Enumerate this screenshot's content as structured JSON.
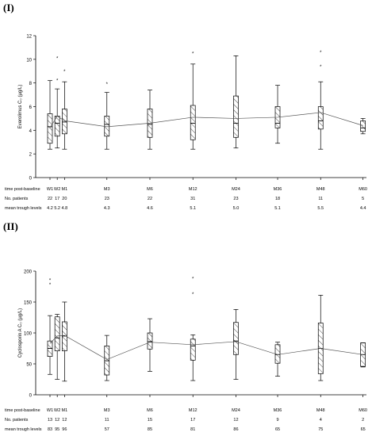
{
  "chart_data": [
    {
      "type": "box",
      "panel_label": "(I)",
      "ylabel": "Everolimus C₀ (µg/L)",
      "ylim": [
        0,
        12
      ],
      "yticks": [
        0,
        2,
        4,
        6,
        8,
        10,
        12
      ],
      "categories": [
        "W1",
        "W2",
        "M1",
        "M3",
        "M6",
        "M12",
        "M24",
        "M36",
        "M48",
        "M60"
      ],
      "boxes": [
        {
          "min": 2.4,
          "q1": 2.9,
          "median": 4.3,
          "q3": 5.4,
          "max": 8.2,
          "outliers": []
        },
        {
          "min": 2.5,
          "q1": 3.5,
          "median": 4.6,
          "q3": 5.2,
          "max": 7.5,
          "outliers": [
            8.2,
            10.1
          ]
        },
        {
          "min": 2.4,
          "q1": 3.7,
          "median": 4.7,
          "q3": 5.8,
          "max": 8.1,
          "outliers": [
            9.0
          ]
        },
        {
          "min": 2.4,
          "q1": 3.5,
          "median": 4.5,
          "q3": 5.2,
          "max": 7.2,
          "outliers": [
            7.9
          ]
        },
        {
          "min": 2.4,
          "q1": 3.4,
          "median": 4.5,
          "q3": 5.8,
          "max": 7.4,
          "outliers": []
        },
        {
          "min": 2.4,
          "q1": 3.2,
          "median": 4.6,
          "q3": 6.1,
          "max": 9.6,
          "outliers": [
            10.5
          ]
        },
        {
          "min": 2.5,
          "q1": 3.4,
          "median": 4.6,
          "q3": 6.9,
          "max": 10.3,
          "outliers": []
        },
        {
          "min": 2.9,
          "q1": 4.2,
          "median": 4.6,
          "q3": 6.0,
          "max": 7.8,
          "outliers": []
        },
        {
          "min": 2.4,
          "q1": 4.1,
          "median": 4.8,
          "q3": 6.0,
          "max": 8.1,
          "outliers": [
            9.4,
            10.6
          ]
        },
        {
          "min": 3.7,
          "q1": 3.9,
          "median": 4.2,
          "q3": 4.8,
          "max": 5.0,
          "outliers": []
        }
      ],
      "mean_line": [
        4.2,
        5.2,
        4.8,
        4.3,
        4.6,
        5.1,
        5.0,
        5.1,
        5.5,
        4.4
      ],
      "table": {
        "time_label": "time post-baseline",
        "rows": [
          {
            "label": "No. patients",
            "values": [
              "22",
              "17",
              "20",
              "23",
              "22",
              "31",
              "23",
              "18",
              "11",
              "5"
            ]
          },
          {
            "label": "mean trough levels",
            "values": [
              "4.2",
              "5.2",
              "4.8",
              "4.3",
              "4.6",
              "5.1",
              "5.0",
              "5.1",
              "5.5",
              "4.4"
            ]
          }
        ]
      }
    },
    {
      "type": "box",
      "panel_label": "(II)",
      "ylabel": "Cyclosporin A C₀ (µg/L)",
      "ylim": [
        0,
        200
      ],
      "yticks": [
        0,
        50,
        100,
        150,
        200
      ],
      "categories": [
        "W1",
        "W2",
        "M1",
        "M3",
        "M6",
        "M12",
        "M24",
        "M36",
        "M48",
        "M60"
      ],
      "boxes": [
        {
          "min": 33,
          "q1": 62,
          "median": 75,
          "q3": 87,
          "max": 128,
          "outliers": [
            178,
            185
          ]
        },
        {
          "min": 25,
          "q1": 71,
          "median": 92,
          "q3": 126,
          "max": 130,
          "outliers": []
        },
        {
          "min": 22,
          "q1": 71,
          "median": 95,
          "q3": 118,
          "max": 150,
          "outliers": []
        },
        {
          "min": 23,
          "q1": 32,
          "median": 55,
          "q3": 79,
          "max": 96,
          "outliers": []
        },
        {
          "min": 38,
          "q1": 74,
          "median": 86,
          "q3": 100,
          "max": 123,
          "outliers": []
        },
        {
          "min": 23,
          "q1": 56,
          "median": 79,
          "q3": 90,
          "max": 97,
          "outliers": [
            163,
            188
          ]
        },
        {
          "min": 25,
          "q1": 65,
          "median": 87,
          "q3": 117,
          "max": 138,
          "outliers": []
        },
        {
          "min": 30,
          "q1": 51,
          "median": 65,
          "q3": 81,
          "max": 85,
          "outliers": []
        },
        {
          "min": 23,
          "q1": 34,
          "median": 75,
          "q3": 116,
          "max": 161,
          "outliers": []
        },
        {
          "min": 45,
          "q1": 46,
          "median": 65,
          "q3": 84,
          "max": 84,
          "outliers": []
        }
      ],
      "mean_line": [
        83,
        95,
        96,
        57,
        85,
        81,
        86,
        65,
        75,
        65
      ],
      "table": {
        "time_label": "time post-baseline",
        "rows": [
          {
            "label": "No. patients",
            "values": [
              "13",
              "12",
              "12",
              "11",
              "15",
              "17",
              "12",
              "9",
              "4",
              "2"
            ]
          },
          {
            "label": "mean trough levels",
            "values": [
              "83",
              "95",
              "96",
              "57",
              "85",
              "81",
              "86",
              "65",
              "75",
              "65"
            ]
          }
        ]
      }
    }
  ]
}
